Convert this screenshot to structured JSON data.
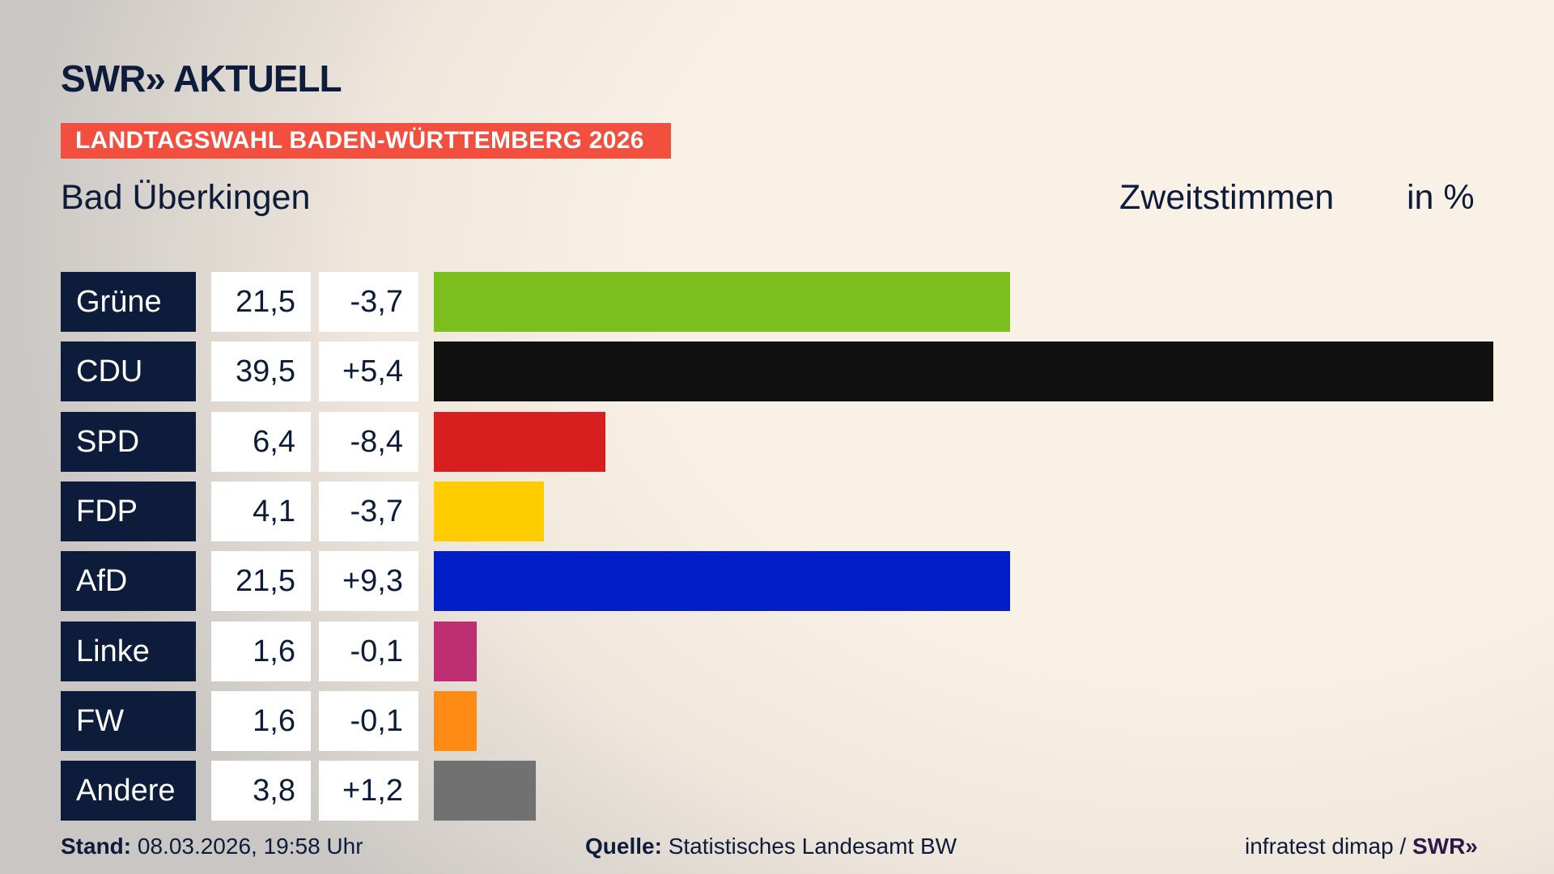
{
  "header": {
    "logo": "SWR» AKTUELL",
    "banner": "LANDTAGSWAHL BADEN-WÜRTTEMBERG 2026",
    "place": "Bad Überkingen",
    "vote_type": "Zweitstimmen",
    "unit": "in %"
  },
  "chart_data": {
    "type": "bar",
    "orientation": "horizontal",
    "xlim": [
      0,
      39.5
    ],
    "categories": [
      "Grüne",
      "CDU",
      "SPD",
      "FDP",
      "AfD",
      "Linke",
      "FW",
      "Andere"
    ],
    "values": [
      21.5,
      39.5,
      6.4,
      4.1,
      21.5,
      1.6,
      1.6,
      3.8
    ],
    "values_label": [
      "21,5",
      "39,5",
      "6,4",
      "4,1",
      "21,5",
      "1,6",
      "1,6",
      "3,8"
    ],
    "diff_label": [
      "-3,7",
      "+5,4",
      "-8,4",
      "-3,7",
      "+9,3",
      "-0,1",
      "-0,1",
      "+1,2"
    ],
    "colors": [
      "#7bbe1e",
      "#111111",
      "#d81f1f",
      "#ffcc00",
      "#001ec8",
      "#bd2e73",
      "#fd8b16",
      "#717171"
    ]
  },
  "footer": {
    "stand_label": "Stand:",
    "stand": "08.03.2026, 19:58 Uhr",
    "quelle_label": "Quelle:",
    "quelle": "Statistisches Landesamt BW",
    "credit": "infratest dimap /",
    "credit_logo": "SWR»"
  }
}
